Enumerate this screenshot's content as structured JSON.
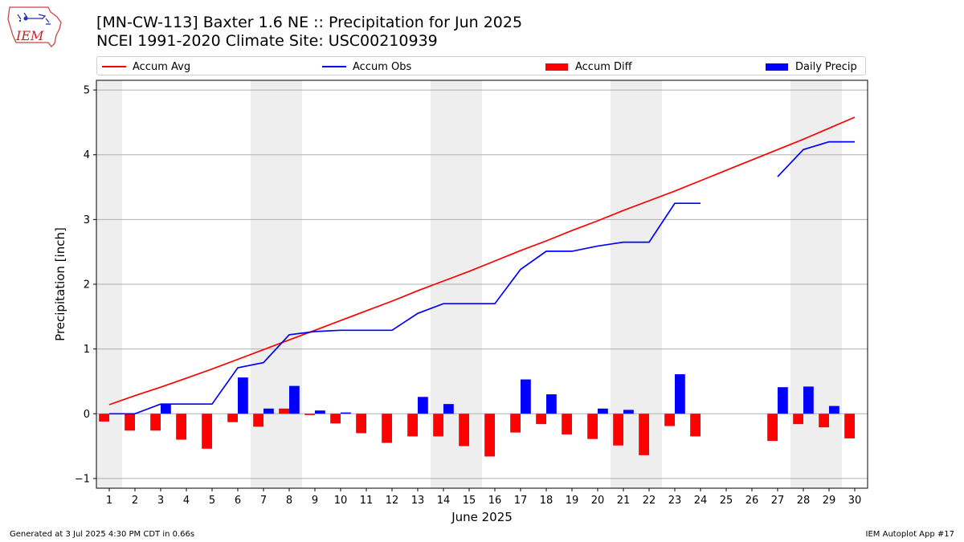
{
  "header": {
    "title_line1": "[MN-CW-113] Baxter 1.6 NE :: Precipitation for Jun 2025",
    "title_line2": "NCEI 1991-2020 Climate Site: USC00210939"
  },
  "logo": {
    "text": "IEM"
  },
  "footer": {
    "generated": "Generated at 3 Jul 2025 4:30 PM CDT in 0.66s",
    "app": "IEM Autoplot App #17"
  },
  "colors": {
    "avg": "#ff0000",
    "obs": "#0000ff",
    "diff": "#ff0000",
    "daily": "#0000ff",
    "weekend": "#eeeeee",
    "grid": "#b0b0b0"
  },
  "chart_data": {
    "type": "bar",
    "xlabel": "June 2025",
    "ylabel": "Precipitation [inch]",
    "ylim": [
      -1.15,
      5.15
    ],
    "yticks": [
      -1,
      0,
      1,
      2,
      3,
      4,
      5
    ],
    "xlim": [
      0.5,
      30.5
    ],
    "xticks": [
      1,
      2,
      3,
      4,
      5,
      6,
      7,
      8,
      9,
      10,
      11,
      12,
      13,
      14,
      15,
      16,
      17,
      18,
      19,
      20,
      21,
      22,
      23,
      24,
      25,
      26,
      27,
      28,
      29,
      30
    ],
    "grid": "horizontal",
    "legend_position": "top",
    "weekend_shading_days": [
      [
        0.5,
        1.5
      ],
      [
        6.5,
        8.5
      ],
      [
        13.5,
        15.5
      ],
      [
        20.5,
        22.5
      ],
      [
        27.5,
        29.5
      ]
    ],
    "days": [
      1,
      2,
      3,
      4,
      5,
      6,
      7,
      8,
      9,
      10,
      11,
      12,
      13,
      14,
      15,
      16,
      17,
      18,
      19,
      20,
      21,
      22,
      23,
      24,
      25,
      26,
      27,
      28,
      29,
      30
    ],
    "series": [
      {
        "name": "Accum Avg",
        "type": "line",
        "values": [
          0.14,
          0.28,
          0.41,
          0.55,
          0.69,
          0.84,
          0.99,
          1.14,
          1.29,
          1.44,
          1.59,
          1.74,
          1.9,
          2.05,
          2.2,
          2.36,
          2.52,
          2.67,
          2.83,
          2.98,
          3.14,
          3.29,
          3.44,
          3.6,
          3.76,
          3.92,
          4.08,
          4.24,
          4.41,
          4.58
        ]
      },
      {
        "name": "Accum Obs",
        "type": "line",
        "values": [
          0.0,
          0.0,
          0.15,
          0.15,
          0.15,
          0.71,
          0.79,
          1.22,
          1.27,
          1.29,
          1.29,
          1.29,
          1.55,
          1.7,
          1.7,
          1.7,
          2.23,
          2.51,
          2.51,
          2.59,
          2.65,
          2.65,
          3.25,
          3.25,
          null,
          null,
          3.66,
          4.08,
          4.2,
          4.2
        ]
      },
      {
        "name": "Accum Diff",
        "type": "bar",
        "values": [
          -0.12,
          -0.26,
          -0.26,
          -0.4,
          -0.54,
          -0.13,
          -0.2,
          0.08,
          -0.02,
          -0.15,
          -0.3,
          -0.45,
          -0.35,
          -0.35,
          -0.5,
          -0.66,
          -0.29,
          -0.16,
          -0.32,
          -0.39,
          -0.49,
          -0.64,
          -0.19,
          -0.35,
          null,
          null,
          -0.42,
          -0.16,
          -0.21,
          -0.38
        ]
      },
      {
        "name": "Daily Precip",
        "type": "bar",
        "values": [
          0.0,
          0.0,
          0.15,
          0.0,
          0.0,
          0.56,
          0.08,
          0.43,
          0.05,
          0.02,
          0.0,
          0.0,
          0.26,
          0.15,
          0.0,
          0.0,
          0.53,
          0.3,
          0.0,
          0.08,
          0.06,
          0.0,
          0.61,
          0.0,
          null,
          null,
          0.41,
          0.42,
          0.12,
          0.0
        ]
      }
    ]
  }
}
